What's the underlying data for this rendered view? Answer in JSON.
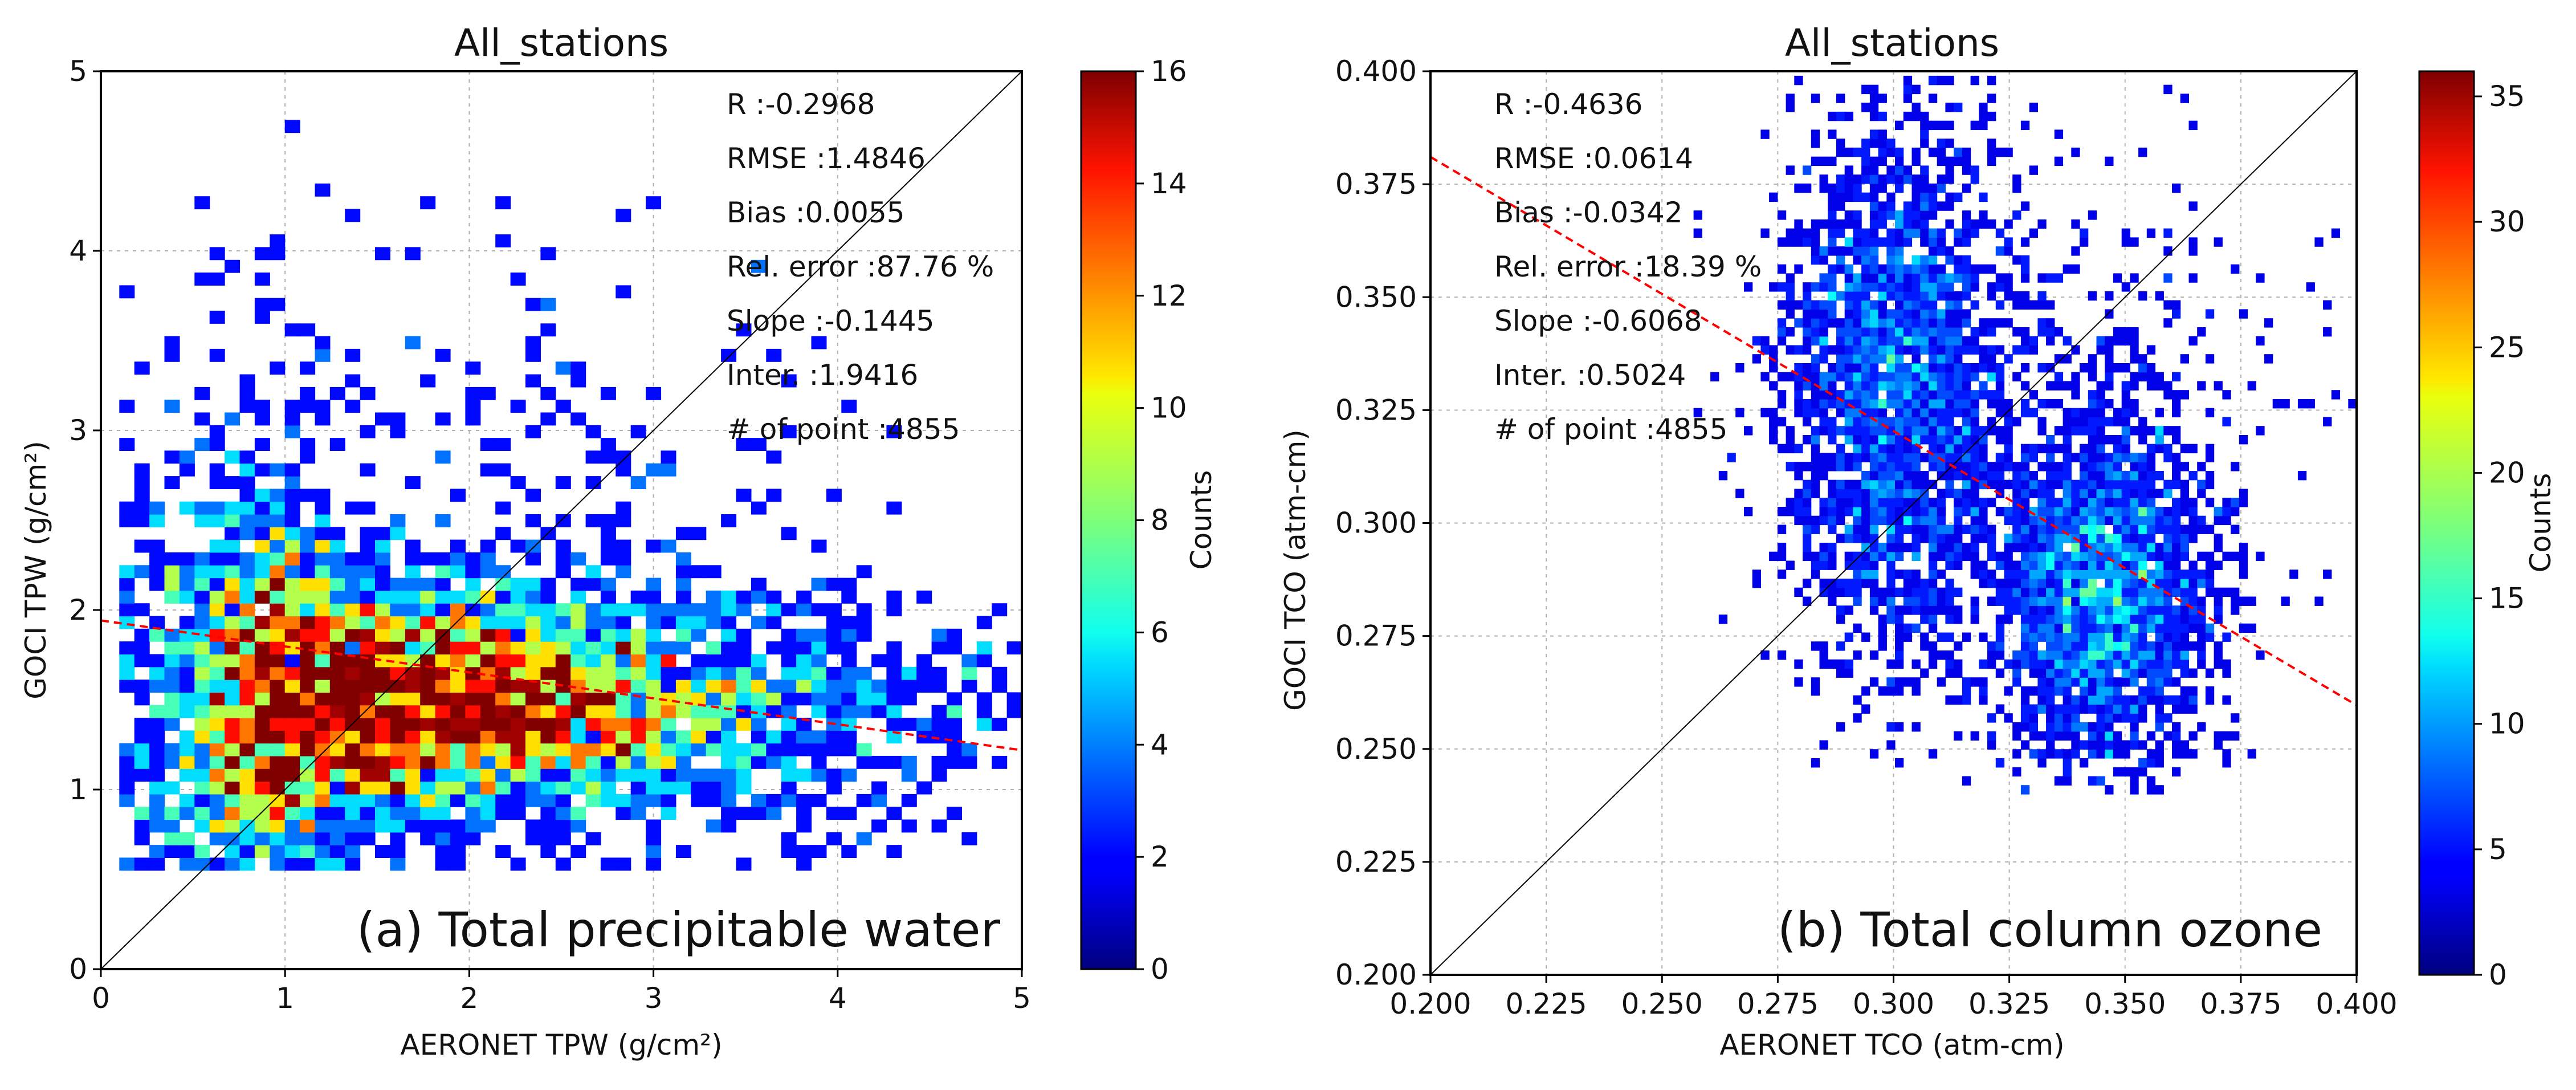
{
  "chart_data": [
    {
      "type": "heatmap",
      "title": "All_stations",
      "xlabel": "AERONET TPW (g/cm²)",
      "ylabel": "GOCI TPW (g/cm²)",
      "xlim": [
        0,
        5
      ],
      "ylim": [
        0,
        5
      ],
      "xticks": [
        "0",
        "1",
        "2",
        "3",
        "4",
        "5"
      ],
      "yticks": [
        "0",
        "1",
        "2",
        "3",
        "4",
        "5"
      ],
      "grid": true,
      "one_to_one_line": true,
      "fit_line": {
        "slope": -0.1445,
        "intercept": 1.9416,
        "color": "#ff0000",
        "style": "dashed"
      },
      "stats": [
        "R     :-0.2968",
        "RMSE :1.4846",
        "Bias :0.0055",
        "Rel. error :87.76 %",
        "Slope :-0.1445",
        "Inter. :1.9416",
        "# of point :4855"
      ],
      "panel_label": "(a) Total precipitable water",
      "colorbar": {
        "label": "Counts",
        "min": 0,
        "max": 16,
        "ticks": [
          "0",
          "2",
          "4",
          "6",
          "8",
          "10",
          "12",
          "14",
          "16"
        ],
        "colormap": "jet"
      },
      "density": {
        "x_center": 1.2,
        "x_spread": 0.9,
        "y_center": 1.5,
        "y_spread": 0.35,
        "x_range": [
          0.1,
          5.0
        ],
        "y_range": [
          0.55,
          4.8
        ],
        "bins": 60,
        "n_points": 4855
      }
    },
    {
      "type": "heatmap",
      "title": "All_stations",
      "xlabel": "AERONET TCO (atm-cm)",
      "ylabel": "GOCI TCO (atm-cm)",
      "xlim": [
        0.2,
        0.4
      ],
      "ylim": [
        0.2,
        0.4
      ],
      "xticks": [
        "0.200",
        "0.225",
        "0.250",
        "0.275",
        "0.300",
        "0.325",
        "0.350",
        "0.375",
        "0.400"
      ],
      "yticks": [
        "0.200",
        "0.225",
        "0.250",
        "0.275",
        "0.300",
        "0.325",
        "0.350",
        "0.375",
        "0.400"
      ],
      "grid": true,
      "one_to_one_line": true,
      "fit_line": {
        "slope": -0.6068,
        "intercept": 0.5024,
        "color": "#ff0000",
        "style": "dashed"
      },
      "stats": [
        "R     :-0.4636",
        "RMSE :0.0614",
        "Bias :-0.0342",
        "Rel. error :18.39 %",
        "Slope :-0.6068",
        "Inter. :0.5024",
        "# of point :4855"
      ],
      "panel_label": "(b) Total column ozone",
      "colorbar": {
        "label": "Counts",
        "min": 0,
        "max": 36,
        "ticks": [
          "0",
          "5",
          "10",
          "15",
          "20",
          "25",
          "30",
          "35"
        ],
        "colormap": "jet"
      },
      "density": {
        "clusters": [
          {
            "x": 0.3,
            "y": 0.33,
            "sx": 0.012,
            "sy": 0.03,
            "w": 0.45
          },
          {
            "x": 0.345,
            "y": 0.285,
            "sx": 0.012,
            "sy": 0.02,
            "w": 0.45
          },
          {
            "x": 0.33,
            "y": 0.33,
            "sx": 0.03,
            "sy": 0.03,
            "w": 0.1
          }
        ],
        "x_range": [
          0.255,
          0.4
        ],
        "y_range": [
          0.24,
          0.399
        ],
        "bins": 80,
        "n_points": 4855
      }
    }
  ]
}
